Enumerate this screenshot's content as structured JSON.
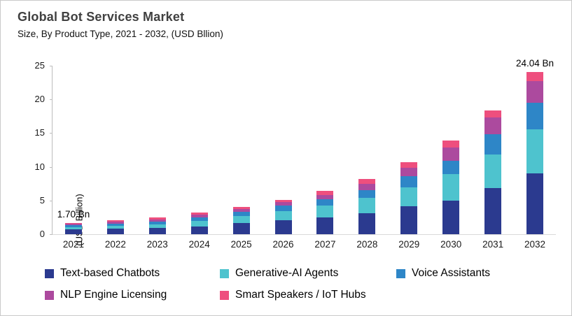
{
  "header": {
    "title": "Global Bot Services Market",
    "subtitle": "Size, By Product Type, 2021 - 2032, (USD Bllion)"
  },
  "chart_data": {
    "type": "bar",
    "stacked": true,
    "title": "Global Bot Services Market",
    "subtitle": "Size, By Product Type, 2021 - 2032, (USD Bllion)",
    "xlabel": "",
    "ylabel": "(USD Billion)",
    "ylim": [
      0,
      25
    ],
    "y_ticks": [
      0,
      5,
      10,
      15,
      20,
      25
    ],
    "grid": false,
    "legend_position": "bottom",
    "categories": [
      "2021",
      "2022",
      "2023",
      "2024",
      "2025",
      "2026",
      "2027",
      "2028",
      "2029",
      "2030",
      "2031",
      "2032"
    ],
    "series": [
      {
        "name": "Text-based Chatbots",
        "color": "#2B3A8F",
        "values": [
          0.7,
          0.82,
          0.92,
          1.13,
          1.65,
          2.06,
          2.47,
          3.08,
          4.11,
          5.0,
          6.81,
          9.04
        ]
      },
      {
        "name": "Generative-AI Agents",
        "color": "#4EC3CE",
        "values": [
          0.32,
          0.42,
          0.51,
          0.82,
          1.03,
          1.34,
          1.75,
          2.36,
          2.88,
          3.95,
          5.0,
          6.56
        ]
      },
      {
        "name": "Voice Assistants",
        "color": "#2E86C7",
        "values": [
          0.3,
          0.33,
          0.41,
          0.51,
          0.62,
          0.82,
          0.92,
          1.13,
          1.64,
          1.95,
          2.98,
          3.9
        ]
      },
      {
        "name": "NLP Engine Licensing",
        "color": "#AC4A9E",
        "values": [
          0.2,
          0.28,
          0.31,
          0.41,
          0.41,
          0.51,
          0.72,
          0.92,
          1.23,
          1.95,
          2.5,
          3.24
        ]
      },
      {
        "name": "Smart Speakers / IoT Hubs",
        "color": "#EE4F7E",
        "values": [
          0.18,
          0.2,
          0.3,
          0.31,
          0.31,
          0.41,
          0.62,
          0.72,
          0.82,
          1.05,
          1.1,
          1.3
        ]
      }
    ],
    "totals": [
      1.7,
      2.05,
      2.45,
      3.18,
      4.02,
      5.14,
      6.48,
      8.21,
      10.68,
      13.9,
      18.39,
      24.04
    ],
    "annotations": [
      {
        "category": "2021",
        "text": "1.70 Bn"
      },
      {
        "category": "2032",
        "text": "24.04 Bn"
      }
    ]
  },
  "colors": {
    "frame_border": "#c9c9c9",
    "title_text": "#404040",
    "axis_line": "#bdbdbd",
    "baseline": "#d9d9d9",
    "tick_text": "#1a1a1a"
  }
}
